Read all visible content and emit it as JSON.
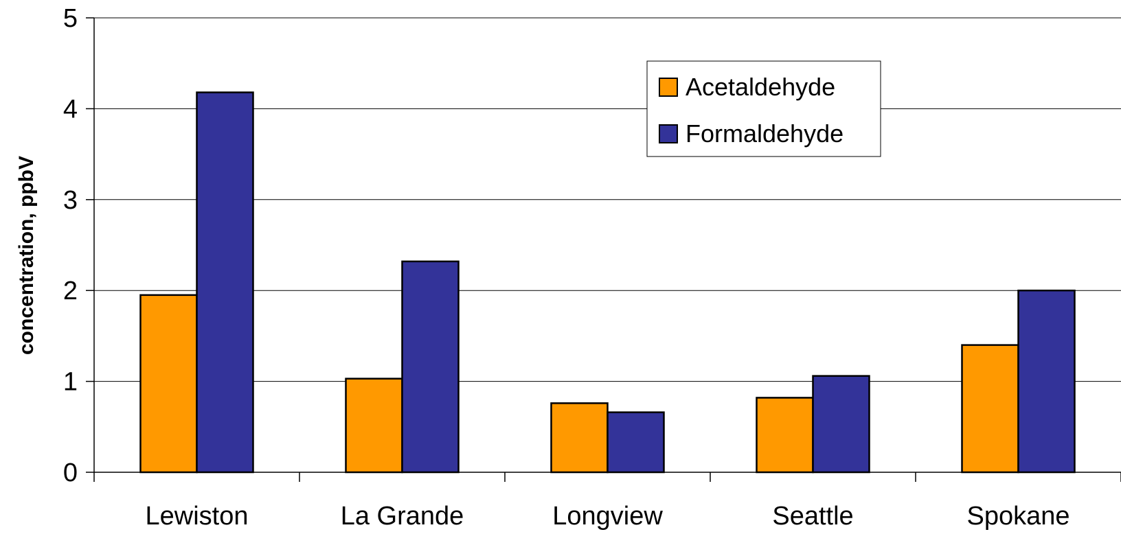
{
  "chart_data": {
    "type": "bar",
    "title": "",
    "xlabel": "",
    "ylabel": "concentration, ppbV",
    "ylim": [
      0,
      5
    ],
    "yticks": [
      "0",
      "1",
      "2",
      "3",
      "4",
      "5"
    ],
    "grid": true,
    "legend_position": "top-right",
    "categories": [
      "Lewiston",
      "La Grande",
      "Longview",
      "Seattle",
      "Spokane"
    ],
    "series": [
      {
        "name": "Acetaldehyde",
        "color": "#FF9900",
        "values": [
          1.95,
          1.03,
          0.76,
          0.82,
          1.4
        ]
      },
      {
        "name": "Formaldehyde",
        "color": "#333399",
        "values": [
          4.18,
          2.32,
          0.66,
          1.06,
          2.0
        ]
      }
    ]
  }
}
